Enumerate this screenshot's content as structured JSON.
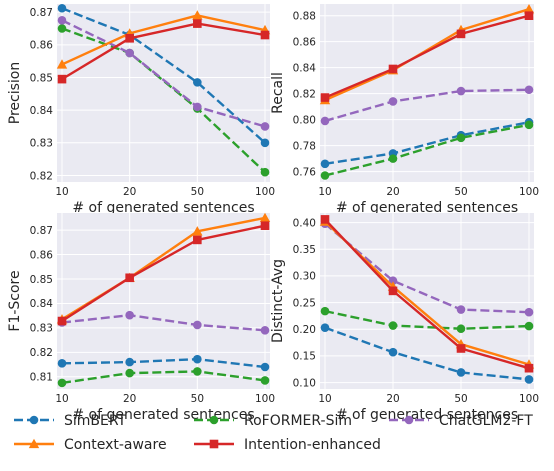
{
  "chart_data": [
    {
      "type": "line",
      "ylabel": "Precision",
      "xlabel": "# of generated sentences",
      "x": [
        "10",
        "20",
        "50",
        "100"
      ],
      "ylim": [
        0.818,
        0.8725
      ],
      "yticks": [
        "0.82",
        "0.83",
        "0.84",
        "0.85",
        "0.86",
        "0.87"
      ],
      "ytick_values": [
        0.82,
        0.83,
        0.84,
        0.85,
        0.86,
        0.87
      ],
      "grid": true,
      "series": [
        {
          "name": "SimBERT",
          "values": [
            0.8712,
            0.863,
            0.8485,
            0.83
          ]
        },
        {
          "name": "RoFORMER-Sim",
          "values": [
            0.865,
            0.8575,
            0.8405,
            0.821
          ]
        },
        {
          "name": "ChatGLM2-FT",
          "values": [
            0.8675,
            0.8575,
            0.841,
            0.835
          ]
        },
        {
          "name": "Context-aware",
          "values": [
            0.854,
            0.8635,
            0.869,
            0.8645
          ]
        },
        {
          "name": "Intention-enhanced",
          "values": [
            0.8495,
            0.862,
            0.8665,
            0.863
          ]
        }
      ]
    },
    {
      "type": "line",
      "ylabel": "Recall",
      "xlabel": "# of generated sentences",
      "x": [
        "10",
        "20",
        "50",
        "100"
      ],
      "ylim": [
        0.752,
        0.889
      ],
      "yticks": [
        "0.76",
        "0.78",
        "0.80",
        "0.82",
        "0.84",
        "0.86",
        "0.88"
      ],
      "ytick_values": [
        0.76,
        0.78,
        0.8,
        0.82,
        0.84,
        0.86,
        0.88
      ],
      "grid": true,
      "series": [
        {
          "name": "SimBERT",
          "values": [
            0.766,
            0.774,
            0.788,
            0.798
          ]
        },
        {
          "name": "RoFORMER-Sim",
          "values": [
            0.757,
            0.77,
            0.786,
            0.796
          ]
        },
        {
          "name": "ChatGLM2-FT",
          "values": [
            0.799,
            0.814,
            0.822,
            0.823
          ]
        },
        {
          "name": "Context-aware",
          "values": [
            0.815,
            0.838,
            0.869,
            0.885
          ]
        },
        {
          "name": "Intention-enhanced",
          "values": [
            0.817,
            0.839,
            0.866,
            0.88
          ]
        }
      ]
    },
    {
      "type": "line",
      "ylabel": "F1-Score",
      "xlabel": "# of generated sentences",
      "x": [
        "10",
        "20",
        "50",
        "100"
      ],
      "ylim": [
        0.805,
        0.877
      ],
      "yticks": [
        "0.81",
        "0.82",
        "0.83",
        "0.84",
        "0.85",
        "0.86",
        "0.87"
      ],
      "ytick_values": [
        0.81,
        0.82,
        0.83,
        0.84,
        0.85,
        0.86,
        0.87
      ],
      "grid": true,
      "series": [
        {
          "name": "SimBERT",
          "values": [
            0.8155,
            0.816,
            0.8172,
            0.814
          ]
        },
        {
          "name": "RoFORMER-Sim",
          "values": [
            0.8075,
            0.8115,
            0.8122,
            0.8085
          ]
        },
        {
          "name": "ChatGLM2-FT",
          "values": [
            0.8322,
            0.8352,
            0.8312,
            0.829
          ]
        },
        {
          "name": "Context-aware",
          "values": [
            0.8335,
            0.8505,
            0.8695,
            0.875
          ]
        },
        {
          "name": "Intention-enhanced",
          "values": [
            0.8328,
            0.8505,
            0.866,
            0.8718
          ]
        }
      ]
    },
    {
      "type": "line",
      "ylabel": "Distinct-Avg",
      "xlabel": "# of generated sentences",
      "x": [
        "10",
        "20",
        "50",
        "100"
      ],
      "ylim": [
        0.088,
        0.418
      ],
      "yticks": [
        "0.10",
        "0.15",
        "0.20",
        "0.25",
        "0.30",
        "0.35",
        "0.40"
      ],
      "ytick_values": [
        0.1,
        0.15,
        0.2,
        0.25,
        0.3,
        0.35,
        0.4
      ],
      "grid": true,
      "series": [
        {
          "name": "SimBERT",
          "values": [
            0.203,
            0.157,
            0.119,
            0.106
          ]
        },
        {
          "name": "RoFORMER-Sim",
          "values": [
            0.234,
            0.207,
            0.201,
            0.206
          ]
        },
        {
          "name": "ChatGLM2-FT",
          "values": [
            0.398,
            0.291,
            0.237,
            0.232
          ]
        },
        {
          "name": "Context-aware",
          "values": [
            0.402,
            0.28,
            0.172,
            0.134
          ]
        },
        {
          "name": "Intention-enhanced",
          "values": [
            0.406,
            0.272,
            0.164,
            0.127
          ]
        }
      ]
    }
  ],
  "legend": {
    "placement": "bottom",
    "entries": [
      {
        "name": "SimBERT",
        "color": "#1f77b4",
        "marker": "circle",
        "dash": "dashed"
      },
      {
        "name": "RoFORMER-Sim",
        "color": "#2ca02c",
        "marker": "circle",
        "dash": "dashed"
      },
      {
        "name": "ChatGLM2-FT",
        "color": "#9467bd",
        "marker": "circle",
        "dash": "dashed"
      },
      {
        "name": "Context-aware",
        "color": "#ff7f0e",
        "marker": "triangle",
        "dash": "solid"
      },
      {
        "name": "Intention-enhanced",
        "color": "#d62728",
        "marker": "square",
        "dash": "solid"
      }
    ]
  },
  "colors": {
    "SimBERT": "#1f77b4",
    "RoFORMER-Sim": "#2ca02c",
    "ChatGLM2-FT": "#9467bd",
    "Context-aware": "#ff7f0e",
    "Intention-enhanced": "#d62728",
    "plot_background": "#eaeaf2",
    "grid": "#ffffff"
  }
}
